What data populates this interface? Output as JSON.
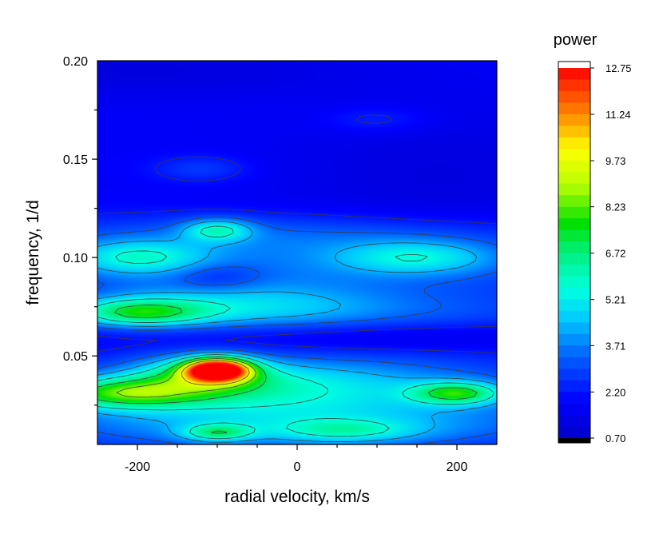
{
  "chart_data": {
    "type": "heatmap",
    "xlabel": "radial velocity, km/s",
    "ylabel": "frequency, 1/d",
    "xlim": [
      -250,
      250
    ],
    "ylim": [
      0.005,
      0.2
    ],
    "x_ticks": [
      -200,
      0,
      200
    ],
    "x_tick_labels": [
      "-200",
      "0",
      "200"
    ],
    "y_ticks": [
      0.05,
      0.1,
      0.15,
      0.2
    ],
    "y_tick_labels": [
      "0.05",
      "0.10",
      "0.15",
      "0.20"
    ],
    "colorbar": {
      "title": "power",
      "min": 0.7,
      "max": 12.75,
      "tick_values": [
        12.75,
        11.24,
        9.73,
        8.23,
        6.72,
        5.21,
        3.71,
        2.2,
        0.7
      ],
      "tick_labels": [
        "12.75",
        "11.24",
        "9.73",
        "8.23",
        "6.72",
        "5.21",
        "3.71",
        "2.20",
        "0.70"
      ]
    },
    "background_power": 1.8,
    "features": [
      {
        "x": -100,
        "y": 0.043,
        "sx": 28,
        "sy": 0.004,
        "power": 10.5
      },
      {
        "x": -120,
        "y": 0.04,
        "sx": 60,
        "sy": 0.007,
        "power": 3.2
      },
      {
        "x": -220,
        "y": 0.031,
        "sx": 70,
        "sy": 0.0055,
        "power": 4.6
      },
      {
        "x": -40,
        "y": 0.034,
        "sx": 140,
        "sy": 0.009,
        "power": 2.2
      },
      {
        "x": 200,
        "y": 0.031,
        "sx": 40,
        "sy": 0.004,
        "power": 4.3
      },
      {
        "x": 60,
        "y": 0.038,
        "sx": 220,
        "sy": 0.012,
        "power": 1.4
      },
      {
        "x": -200,
        "y": 0.072,
        "sx": 60,
        "sy": 0.005,
        "power": 4.2
      },
      {
        "x": -80,
        "y": 0.075,
        "sx": 120,
        "sy": 0.008,
        "power": 2.0
      },
      {
        "x": 100,
        "y": 0.07,
        "sx": 220,
        "sy": 0.01,
        "power": 1.3
      },
      {
        "x": -100,
        "y": 0.011,
        "sx": 30,
        "sy": 0.003,
        "power": 3.0
      },
      {
        "x": 60,
        "y": 0.012,
        "sx": 60,
        "sy": 0.004,
        "power": 2.0
      },
      {
        "x": 0,
        "y": 0.015,
        "sx": 250,
        "sy": 0.01,
        "power": 2.5
      },
      {
        "x": -200,
        "y": 0.1,
        "sx": 60,
        "sy": 0.006,
        "power": 2.6
      },
      {
        "x": 150,
        "y": 0.1,
        "sx": 70,
        "sy": 0.006,
        "power": 2.4
      },
      {
        "x": 0,
        "y": 0.095,
        "sx": 300,
        "sy": 0.012,
        "power": 1.6
      },
      {
        "x": -100,
        "y": 0.114,
        "sx": 30,
        "sy": 0.004,
        "power": 2.8
      },
      {
        "x": 0,
        "y": 0.112,
        "sx": 250,
        "sy": 0.008,
        "power": 1.2
      },
      {
        "x": -120,
        "y": 0.145,
        "sx": 45,
        "sy": 0.005,
        "power": 1.0
      },
      {
        "x": 100,
        "y": 0.17,
        "sx": 50,
        "sy": 0.005,
        "power": 0.8
      },
      {
        "x": -100,
        "y": 0.09,
        "sx": 40,
        "sy": 0.005,
        "power": -1.0
      },
      {
        "x": 100,
        "y": 0.06,
        "sx": 200,
        "sy": 0.006,
        "power": -1.2
      },
      {
        "x": -200,
        "y": 0.195,
        "sx": 200,
        "sy": 0.01,
        "power": -0.6
      },
      {
        "x": 180,
        "y": 0.14,
        "sx": 150,
        "sy": 0.03,
        "power": -0.6
      }
    ],
    "contour_levels": [
      2.2,
      3.3,
      4.3,
      5.5,
      7.0,
      8.5,
      10.0
    ],
    "grid": false
  }
}
